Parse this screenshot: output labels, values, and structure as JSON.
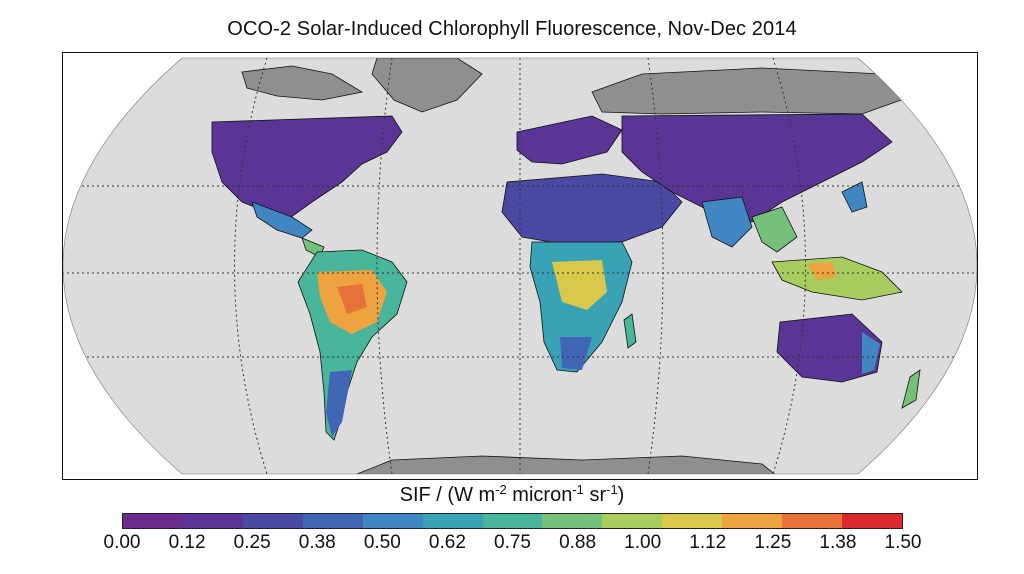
{
  "title": "OCO-2 Solar-Induced Chlorophyll Fluorescence, Nov-Dec 2014",
  "colorbar": {
    "label_base": "SIF / (W m",
    "label_exp1": "-2",
    "label_mid": " micron",
    "label_exp2": "-1",
    "label_mid2": " sr",
    "label_exp3": "-1",
    "label_end": ")",
    "ticks": [
      "0.00",
      "0.12",
      "0.25",
      "0.38",
      "0.50",
      "0.62",
      "0.75",
      "0.88",
      "1.00",
      "1.12",
      "1.25",
      "1.38",
      "1.50"
    ],
    "min": 0.0,
    "max": 1.5,
    "colors": [
      "#6a2a8e",
      "#5a3596",
      "#4a4aa5",
      "#4166b5",
      "#3f86c2",
      "#3aa2b5",
      "#49b59a",
      "#75c07b",
      "#a8cc5e",
      "#d8c84c",
      "#eda340",
      "#e8713a",
      "#d9292f"
    ]
  },
  "colors": {
    "ocean": "#dcdcdc",
    "land_no_data": "#8f8f8f",
    "border": "#111111",
    "graticule": "#333333"
  },
  "map": {
    "projection": "Robinson",
    "graticule": "dotted, 30° spacing"
  }
}
